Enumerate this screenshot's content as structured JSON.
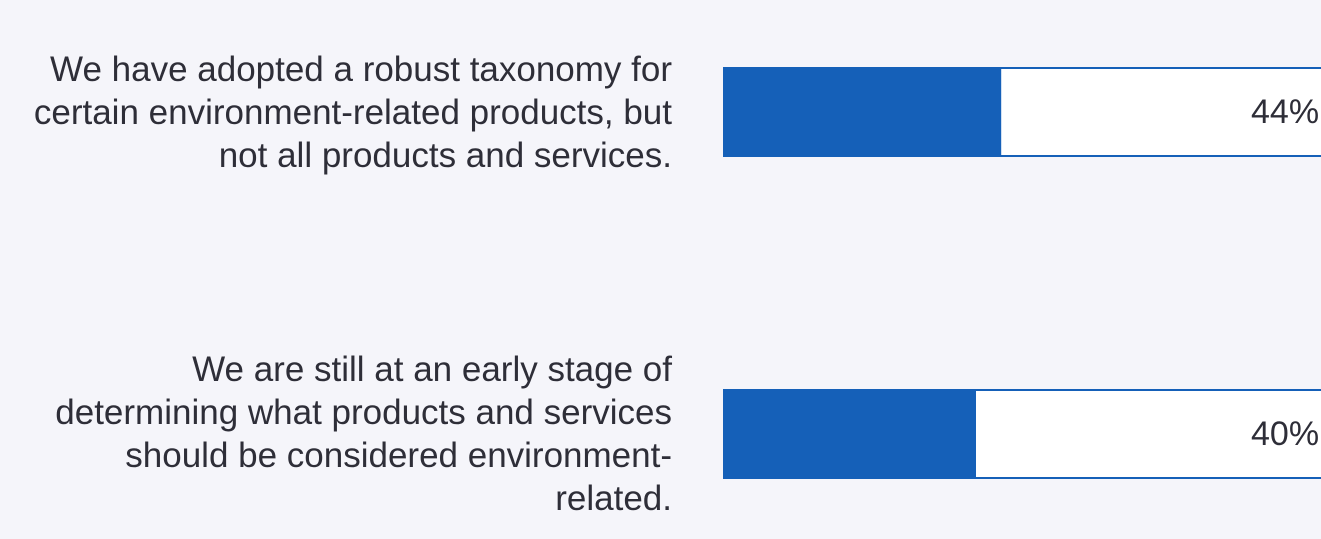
{
  "chart_data": {
    "type": "bar",
    "orientation": "horizontal",
    "categories": [
      "We have adopted a robust taxonomy for certain environment-related products, but not all products and services.",
      "We are still at an early stage of determining what products and services should be considered environment-related."
    ],
    "values": [
      44,
      40
    ],
    "value_labels": [
      "44%",
      "40%"
    ],
    "color": "#1560b8",
    "xlim": [
      0,
      100
    ]
  }
}
